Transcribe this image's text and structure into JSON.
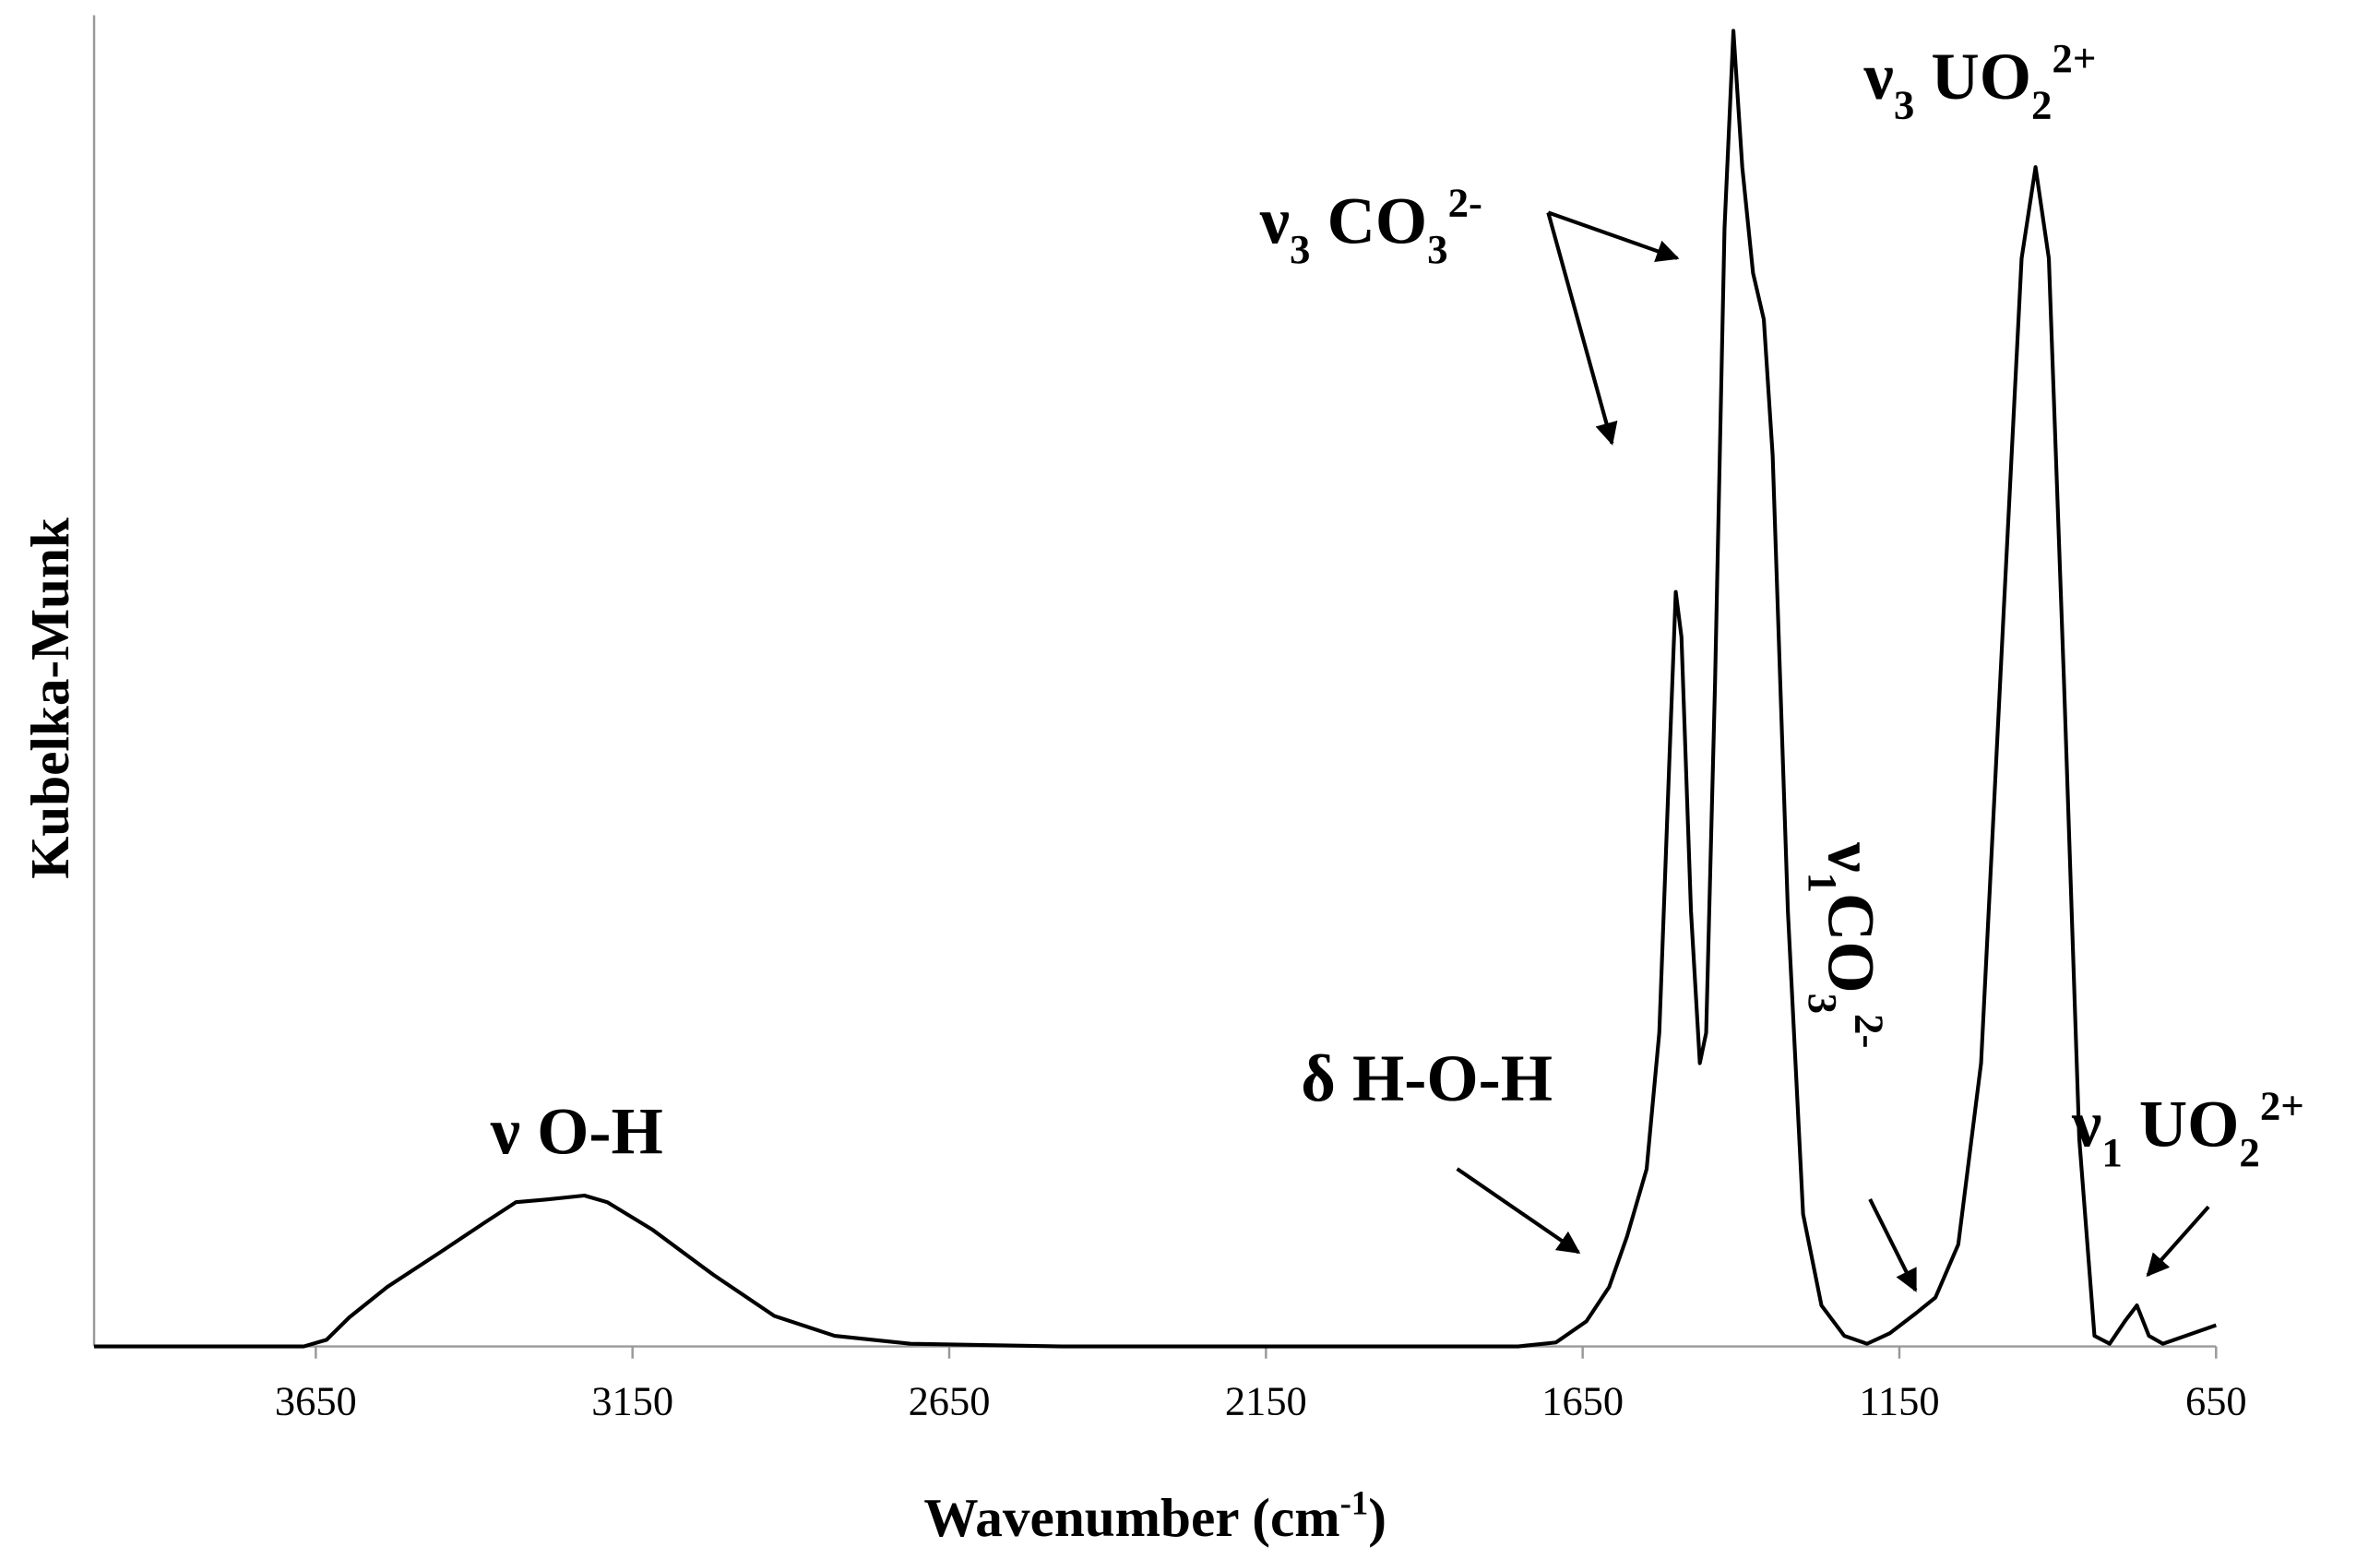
{
  "chart_data": {
    "type": "line",
    "x_label": [
      [
        "Wavenumber (cm",
        ""
      ],
      [
        "-1",
        "sup"
      ],
      [
        ")",
        ""
      ]
    ],
    "y_label": "Kubelka-Munk",
    "xlim": [
      4000,
      650
    ],
    "ylim": [
      0,
      1
    ],
    "xticks": [
      3650,
      3150,
      2650,
      2150,
      1650,
      1150,
      650
    ],
    "color": "#000000",
    "x": [
      4000,
      3669,
      3633,
      3597,
      3537,
      3454,
      3382,
      3334,
      3286,
      3226,
      3190,
      3118,
      3022,
      2926,
      2831,
      2711,
      2471,
      1752,
      1692,
      1644,
      1608,
      1580,
      1549,
      1529,
      1513,
      1503,
      1494,
      1479,
      1465,
      1455,
      1441,
      1426,
      1412,
      1398,
      1381,
      1364,
      1350,
      1326,
      1302,
      1273,
      1237,
      1201,
      1165,
      1124,
      1093,
      1057,
      1021,
      985,
      957,
      935,
      914,
      890,
      866,
      842,
      818,
      794,
      775,
      756,
      734,
      698,
      650
    ],
    "values": [
      0,
      0,
      0.005,
      0.022,
      0.045,
      0.071,
      0.094,
      0.109,
      0.111,
      0.114,
      0.109,
      0.088,
      0.054,
      0.023,
      0.008,
      0.002,
      0,
      0,
      0.003,
      0.019,
      0.045,
      0.083,
      0.134,
      0.237,
      0.444,
      0.57,
      0.536,
      0.329,
      0.214,
      0.237,
      0.501,
      0.845,
      0.994,
      0.891,
      0.811,
      0.776,
      0.673,
      0.329,
      0.1,
      0.031,
      0.008,
      0.002,
      0.01,
      0.025,
      0.037,
      0.077,
      0.214,
      0.558,
      0.822,
      0.891,
      0.822,
      0.501,
      0.157,
      0.008,
      0.002,
      0.019,
      0.031,
      0.008,
      0.002,
      0.008,
      0.016
    ],
    "annotations": [
      {
        "parts": [
          [
            "ν O-H",
            ""
          ]
        ]
      },
      {
        "parts": [
          [
            "δ H-O-H",
            ""
          ]
        ]
      },
      {
        "parts": [
          [
            "ν",
            ""
          ],
          [
            "3",
            "sub"
          ],
          [
            " CO",
            ""
          ],
          [
            "3",
            "sub"
          ],
          [
            "2-",
            "sup"
          ]
        ]
      },
      {
        "parts": [
          [
            "ν",
            ""
          ],
          [
            "3",
            "sub"
          ],
          [
            " UO",
            ""
          ],
          [
            "2",
            "sub"
          ],
          [
            "2+",
            "sup"
          ]
        ]
      },
      {
        "parts": [
          [
            "ν",
            ""
          ],
          [
            "1",
            "sub"
          ],
          [
            "CO",
            ""
          ],
          [
            "3",
            "sub"
          ],
          [
            "2-",
            "sup"
          ]
        ]
      },
      {
        "parts": [
          [
            "ν",
            ""
          ],
          [
            "1",
            "sub"
          ],
          [
            " UO",
            ""
          ],
          [
            "2",
            "sub"
          ],
          [
            "2+",
            "sup"
          ]
        ]
      }
    ]
  }
}
